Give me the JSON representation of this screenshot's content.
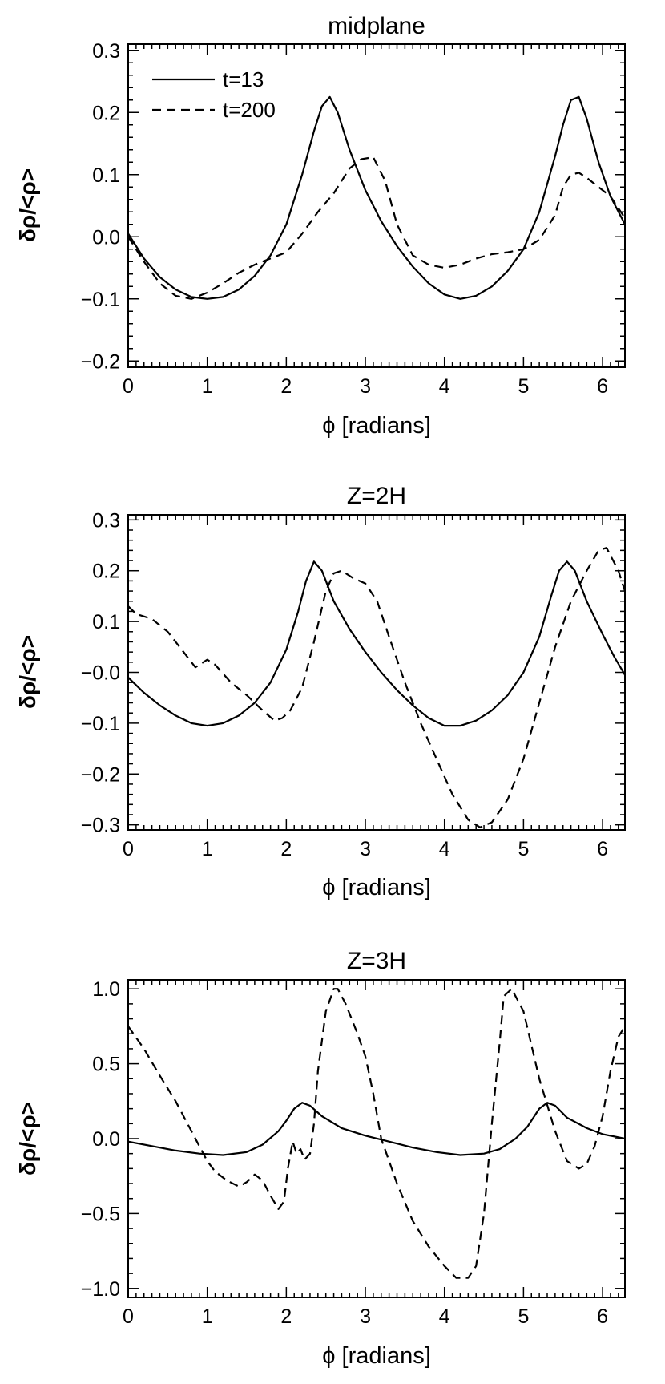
{
  "chart_data": [
    {
      "type": "line",
      "title": "midplane",
      "xlabel": "ϕ [radians]",
      "ylabel": "δρ/<ρ>",
      "xlim": [
        0,
        6.283
      ],
      "ylim": [
        -0.21,
        0.31
      ],
      "xticks": [
        0,
        1,
        2,
        3,
        4,
        5,
        6
      ],
      "xtick_labels": [
        "0",
        "1",
        "2",
        "3",
        "4",
        "5",
        "6"
      ],
      "yticks": [
        -0.2,
        -0.1,
        0.0,
        0.1,
        0.2,
        0.3
      ],
      "ytick_labels": [
        "−0.2",
        "−0.1",
        "0.0",
        "0.1",
        "0.2",
        "0.3"
      ],
      "grid": false,
      "legend_position": "top-left",
      "series": [
        {
          "name": "t=13",
          "style": "solid",
          "x": [
            0,
            0.2,
            0.4,
            0.6,
            0.8,
            1.0,
            1.2,
            1.4,
            1.6,
            1.8,
            2.0,
            2.2,
            2.35,
            2.45,
            2.55,
            2.65,
            2.8,
            3.0,
            3.2,
            3.4,
            3.6,
            3.8,
            4.0,
            4.2,
            4.4,
            4.6,
            4.8,
            5.0,
            5.2,
            5.4,
            5.5,
            5.6,
            5.7,
            5.8,
            5.95,
            6.1,
            6.283
          ],
          "y": [
            0.005,
            -0.035,
            -0.065,
            -0.085,
            -0.097,
            -0.1,
            -0.097,
            -0.085,
            -0.063,
            -0.03,
            0.02,
            0.1,
            0.17,
            0.21,
            0.225,
            0.2,
            0.14,
            0.075,
            0.025,
            -0.015,
            -0.048,
            -0.075,
            -0.093,
            -0.1,
            -0.095,
            -0.08,
            -0.055,
            -0.02,
            0.04,
            0.13,
            0.18,
            0.22,
            0.225,
            0.19,
            0.12,
            0.065,
            0.02
          ]
        },
        {
          "name": "t=200",
          "style": "dashed",
          "x": [
            0,
            0.2,
            0.4,
            0.6,
            0.8,
            1.0,
            1.2,
            1.4,
            1.6,
            1.8,
            2.0,
            2.2,
            2.4,
            2.6,
            2.8,
            2.95,
            3.1,
            3.25,
            3.4,
            3.6,
            3.8,
            4.0,
            4.2,
            4.4,
            4.6,
            4.8,
            5.0,
            5.2,
            5.4,
            5.5,
            5.6,
            5.7,
            5.8,
            5.95,
            6.1,
            6.283
          ],
          "y": [
            0.0,
            -0.04,
            -0.075,
            -0.095,
            -0.1,
            -0.09,
            -0.075,
            -0.058,
            -0.045,
            -0.035,
            -0.025,
            0.005,
            0.04,
            0.07,
            0.11,
            0.125,
            0.128,
            0.09,
            0.02,
            -0.03,
            -0.045,
            -0.05,
            -0.045,
            -0.035,
            -0.028,
            -0.025,
            -0.02,
            -0.005,
            0.035,
            0.08,
            0.1,
            0.103,
            0.095,
            0.08,
            0.065,
            0.03
          ]
        }
      ]
    },
    {
      "type": "line",
      "title": "Z=2H",
      "xlabel": "ϕ [radians]",
      "ylabel": "δρ/<ρ>",
      "xlim": [
        0,
        6.283
      ],
      "ylim": [
        -0.31,
        0.31
      ],
      "xticks": [
        0,
        1,
        2,
        3,
        4,
        5,
        6
      ],
      "xtick_labels": [
        "0",
        "1",
        "2",
        "3",
        "4",
        "5",
        "6"
      ],
      "yticks": [
        -0.3,
        -0.2,
        -0.1,
        0.0,
        0.1,
        0.2,
        0.3
      ],
      "ytick_labels": [
        "−0.3",
        "−0.2",
        "−0.1",
        "−0.0",
        "0.1",
        "0.2",
        "0.3"
      ],
      "grid": false,
      "series": [
        {
          "name": "t=13",
          "style": "solid",
          "x": [
            0,
            0.2,
            0.4,
            0.6,
            0.8,
            1.0,
            1.2,
            1.4,
            1.6,
            1.8,
            2.0,
            2.15,
            2.25,
            2.35,
            2.45,
            2.6,
            2.8,
            3.0,
            3.2,
            3.4,
            3.6,
            3.8,
            4.0,
            4.2,
            4.4,
            4.6,
            4.8,
            5.0,
            5.2,
            5.35,
            5.45,
            5.55,
            5.65,
            5.8,
            6.0,
            6.15,
            6.283
          ],
          "y": [
            -0.01,
            -0.04,
            -0.065,
            -0.085,
            -0.1,
            -0.105,
            -0.1,
            -0.085,
            -0.06,
            -0.02,
            0.045,
            0.12,
            0.18,
            0.218,
            0.2,
            0.14,
            0.085,
            0.04,
            0.0,
            -0.035,
            -0.065,
            -0.09,
            -0.105,
            -0.105,
            -0.095,
            -0.075,
            -0.045,
            0.0,
            0.07,
            0.15,
            0.2,
            0.218,
            0.2,
            0.14,
            0.075,
            0.03,
            -0.005
          ]
        },
        {
          "name": "t=200",
          "style": "dashed",
          "x": [
            0,
            0.1,
            0.3,
            0.5,
            0.7,
            0.85,
            1.0,
            1.1,
            1.3,
            1.5,
            1.7,
            1.85,
            1.95,
            2.05,
            2.2,
            2.35,
            2.5,
            2.6,
            2.7,
            2.85,
            3.0,
            3.15,
            3.3,
            3.5,
            3.7,
            3.9,
            4.1,
            4.3,
            4.45,
            4.6,
            4.8,
            5.0,
            5.2,
            5.4,
            5.6,
            5.8,
            5.95,
            6.05,
            6.2,
            6.283
          ],
          "y": [
            0.13,
            0.115,
            0.105,
            0.08,
            0.04,
            0.01,
            0.025,
            0.015,
            -0.02,
            -0.045,
            -0.075,
            -0.095,
            -0.09,
            -0.075,
            -0.03,
            0.06,
            0.16,
            0.195,
            0.2,
            0.185,
            0.175,
            0.14,
            0.07,
            -0.02,
            -0.1,
            -0.17,
            -0.24,
            -0.29,
            -0.305,
            -0.295,
            -0.25,
            -0.17,
            -0.06,
            0.05,
            0.14,
            0.2,
            0.24,
            0.245,
            0.2,
            0.16
          ]
        }
      ]
    },
    {
      "type": "line",
      "title": "Z=3H",
      "xlabel": "ϕ [radians]",
      "ylabel": "δρ/<ρ>",
      "xlim": [
        0,
        6.283
      ],
      "ylim": [
        -1.06,
        1.06
      ],
      "xticks": [
        0,
        1,
        2,
        3,
        4,
        5,
        6
      ],
      "xtick_labels": [
        "0",
        "1",
        "2",
        "3",
        "4",
        "5",
        "6"
      ],
      "yticks": [
        -1.0,
        -0.5,
        0.0,
        0.5,
        1.0
      ],
      "ytick_labels": [
        "−1.0",
        "−0.5",
        "0.0",
        "0.5",
        "1.0"
      ],
      "grid": false,
      "series": [
        {
          "name": "t=13",
          "style": "solid",
          "x": [
            0,
            0.3,
            0.6,
            0.9,
            1.2,
            1.5,
            1.7,
            1.9,
            2.0,
            2.1,
            2.2,
            2.3,
            2.45,
            2.7,
            3.0,
            3.3,
            3.6,
            3.9,
            4.2,
            4.5,
            4.7,
            4.9,
            5.05,
            5.2,
            5.3,
            5.4,
            5.55,
            5.8,
            6.0,
            6.283
          ],
          "y": [
            -0.02,
            -0.05,
            -0.08,
            -0.1,
            -0.11,
            -0.09,
            -0.04,
            0.05,
            0.12,
            0.2,
            0.24,
            0.22,
            0.15,
            0.07,
            0.02,
            -0.02,
            -0.06,
            -0.09,
            -0.11,
            -0.1,
            -0.07,
            0.0,
            0.08,
            0.2,
            0.24,
            0.22,
            0.14,
            0.07,
            0.03,
            0.0
          ]
        },
        {
          "name": "t=200",
          "style": "dashed",
          "x": [
            0,
            0.2,
            0.4,
            0.6,
            0.75,
            0.9,
            1.0,
            1.1,
            1.25,
            1.4,
            1.5,
            1.6,
            1.7,
            1.8,
            1.9,
            1.97,
            2.02,
            2.08,
            2.13,
            2.18,
            2.23,
            2.3,
            2.35,
            2.4,
            2.5,
            2.6,
            2.65,
            2.75,
            2.9,
            3.0,
            3.1,
            3.2,
            3.4,
            3.6,
            3.8,
            4.0,
            4.15,
            4.3,
            4.4,
            4.5,
            4.6,
            4.7,
            4.75,
            4.85,
            5.0,
            5.2,
            5.4,
            5.55,
            5.7,
            5.8,
            5.9,
            6.0,
            6.1,
            6.2,
            6.283
          ],
          "y": [
            0.75,
            0.6,
            0.42,
            0.25,
            0.1,
            -0.05,
            -0.15,
            -0.22,
            -0.28,
            -0.32,
            -0.29,
            -0.24,
            -0.28,
            -0.38,
            -0.47,
            -0.42,
            -0.2,
            -0.02,
            -0.1,
            -0.07,
            -0.14,
            -0.1,
            0.1,
            0.45,
            0.85,
            1.0,
            1.0,
            0.9,
            0.7,
            0.55,
            0.3,
            0.0,
            -0.3,
            -0.55,
            -0.72,
            -0.85,
            -0.93,
            -0.93,
            -0.85,
            -0.5,
            0.1,
            0.65,
            0.95,
            1.0,
            0.85,
            0.4,
            0.05,
            -0.15,
            -0.2,
            -0.17,
            -0.05,
            0.15,
            0.45,
            0.68,
            0.75
          ]
        }
      ]
    }
  ]
}
